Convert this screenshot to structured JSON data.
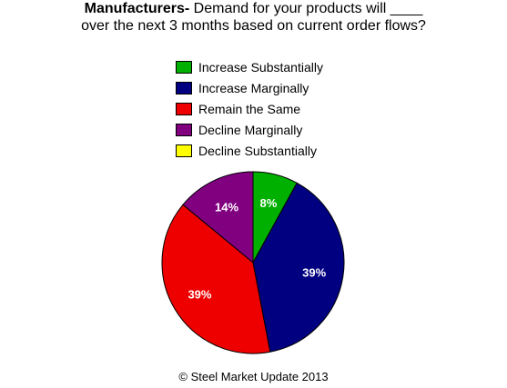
{
  "title": {
    "bold_part": "Manufacturers-",
    "line1_rest": " Demand for your products will ____",
    "line2": "over the next 3 months based on current order flows?"
  },
  "credit": "© Steel Market Update 2013",
  "chart_data": {
    "type": "pie",
    "title": "Manufacturers- Demand for your products will ____ over the next 3 months based on current order flows?",
    "legend_position": "top",
    "slices": [
      {
        "label": "Increase Substantially",
        "value": 8,
        "display": "8%",
        "color": "#00b000"
      },
      {
        "label": "Increase Marginally",
        "value": 39,
        "display": "39%",
        "color": "#000080"
      },
      {
        "label": "Remain the Same",
        "value": 39,
        "display": "39%",
        "color": "#ee0000"
      },
      {
        "label": "Decline Marginally",
        "value": 14,
        "display": "14%",
        "color": "#800080"
      },
      {
        "label": "Decline Substantially",
        "value": 0,
        "display": "",
        "color": "#ffff00"
      }
    ]
  }
}
